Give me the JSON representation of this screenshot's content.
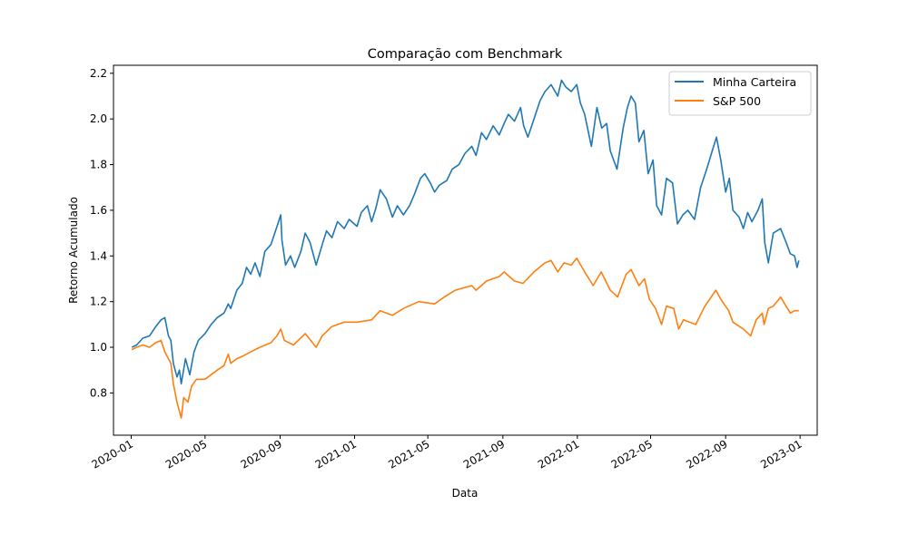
{
  "chart_data": {
    "type": "line",
    "title": "Comparação com Benchmark",
    "xlabel": "Data",
    "ylabel": "Retorno Acumulado",
    "xlim": [
      "2019-12-03",
      "2023-01-29"
    ],
    "ylim": [
      0.615,
      2.235
    ],
    "x_ticks": [
      "2020-01-01",
      "2020-05-01",
      "2020-09-01",
      "2021-01-01",
      "2021-05-01",
      "2021-09-01",
      "2022-01-01",
      "2022-05-01",
      "2022-09-01",
      "2023-01-01"
    ],
    "x_tick_labels": [
      "2020-01",
      "2020-05",
      "2020-09",
      "2021-01",
      "2021-05",
      "2021-09",
      "2022-01",
      "2022-05",
      "2022-09",
      "2023-01"
    ],
    "y_ticks": [
      0.8,
      1.0,
      1.2,
      1.4,
      1.6,
      1.8,
      2.0,
      2.2
    ],
    "y_tick_labels": [
      "0.8",
      "1.0",
      "1.2",
      "1.4",
      "1.6",
      "1.8",
      "2.0",
      "2.2"
    ],
    "grid": false,
    "legend_position": "top-right",
    "series": [
      {
        "name": "Minha Carteira",
        "color": "#1f77b4",
        "points": [
          [
            "2020-01-02",
            1.0
          ],
          [
            "2020-01-10",
            1.01
          ],
          [
            "2020-01-20",
            1.04
          ],
          [
            "2020-01-31",
            1.05
          ],
          [
            "2020-02-10",
            1.09
          ],
          [
            "2020-02-19",
            1.12
          ],
          [
            "2020-02-25",
            1.13
          ],
          [
            "2020-03-02",
            1.05
          ],
          [
            "2020-03-06",
            1.03
          ],
          [
            "2020-03-10",
            0.93
          ],
          [
            "2020-03-16",
            0.87
          ],
          [
            "2020-03-20",
            0.9
          ],
          [
            "2020-03-23",
            0.84
          ],
          [
            "2020-03-30",
            0.95
          ],
          [
            "2020-04-06",
            0.88
          ],
          [
            "2020-04-13",
            0.98
          ],
          [
            "2020-04-20",
            1.03
          ],
          [
            "2020-05-01",
            1.06
          ],
          [
            "2020-05-11",
            1.1
          ],
          [
            "2020-05-21",
            1.13
          ],
          [
            "2020-06-01",
            1.15
          ],
          [
            "2020-06-08",
            1.19
          ],
          [
            "2020-06-12",
            1.17
          ],
          [
            "2020-06-22",
            1.25
          ],
          [
            "2020-07-01",
            1.28
          ],
          [
            "2020-07-08",
            1.35
          ],
          [
            "2020-07-15",
            1.32
          ],
          [
            "2020-07-22",
            1.37
          ],
          [
            "2020-07-30",
            1.31
          ],
          [
            "2020-08-07",
            1.42
          ],
          [
            "2020-08-17",
            1.45
          ],
          [
            "2020-08-27",
            1.53
          ],
          [
            "2020-09-02",
            1.58
          ],
          [
            "2020-09-04",
            1.47
          ],
          [
            "2020-09-10",
            1.36
          ],
          [
            "2020-09-18",
            1.4
          ],
          [
            "2020-09-25",
            1.35
          ],
          [
            "2020-10-05",
            1.42
          ],
          [
            "2020-10-12",
            1.5
          ],
          [
            "2020-10-20",
            1.46
          ],
          [
            "2020-10-30",
            1.36
          ],
          [
            "2020-11-09",
            1.45
          ],
          [
            "2020-11-16",
            1.51
          ],
          [
            "2020-11-25",
            1.48
          ],
          [
            "2020-12-04",
            1.55
          ],
          [
            "2020-12-15",
            1.52
          ],
          [
            "2020-12-23",
            1.56
          ],
          [
            "2021-01-05",
            1.53
          ],
          [
            "2021-01-12",
            1.59
          ],
          [
            "2021-01-22",
            1.62
          ],
          [
            "2021-01-29",
            1.55
          ],
          [
            "2021-02-05",
            1.61
          ],
          [
            "2021-02-12",
            1.69
          ],
          [
            "2021-02-22",
            1.65
          ],
          [
            "2021-03-04",
            1.57
          ],
          [
            "2021-03-12",
            1.62
          ],
          [
            "2021-03-22",
            1.58
          ],
          [
            "2021-04-01",
            1.62
          ],
          [
            "2021-04-09",
            1.67
          ],
          [
            "2021-04-19",
            1.74
          ],
          [
            "2021-04-26",
            1.76
          ],
          [
            "2021-05-05",
            1.72
          ],
          [
            "2021-05-12",
            1.68
          ],
          [
            "2021-05-20",
            1.71
          ],
          [
            "2021-06-01",
            1.73
          ],
          [
            "2021-06-10",
            1.78
          ],
          [
            "2021-06-21",
            1.8
          ],
          [
            "2021-07-01",
            1.85
          ],
          [
            "2021-07-12",
            1.88
          ],
          [
            "2021-07-19",
            1.84
          ],
          [
            "2021-07-28",
            1.94
          ],
          [
            "2021-08-05",
            1.91
          ],
          [
            "2021-08-16",
            1.97
          ],
          [
            "2021-08-26",
            1.93
          ],
          [
            "2021-09-03",
            1.98
          ],
          [
            "2021-09-10",
            2.02
          ],
          [
            "2021-09-20",
            1.99
          ],
          [
            "2021-09-30",
            2.05
          ],
          [
            "2021-10-05",
            1.97
          ],
          [
            "2021-10-12",
            1.92
          ],
          [
            "2021-10-22",
            2.0
          ],
          [
            "2021-11-01",
            2.08
          ],
          [
            "2021-11-09",
            2.12
          ],
          [
            "2021-11-19",
            2.15
          ],
          [
            "2021-11-30",
            2.1
          ],
          [
            "2021-12-06",
            2.17
          ],
          [
            "2021-12-13",
            2.14
          ],
          [
            "2021-12-22",
            2.12
          ],
          [
            "2021-12-31",
            2.15
          ],
          [
            "2022-01-06",
            2.07
          ],
          [
            "2022-01-13",
            2.02
          ],
          [
            "2022-01-24",
            1.88
          ],
          [
            "2022-02-02",
            2.05
          ],
          [
            "2022-02-10",
            1.96
          ],
          [
            "2022-02-18",
            1.98
          ],
          [
            "2022-02-24",
            1.86
          ],
          [
            "2022-03-07",
            1.78
          ],
          [
            "2022-03-17",
            1.96
          ],
          [
            "2022-03-24",
            2.05
          ],
          [
            "2022-03-30",
            2.1
          ],
          [
            "2022-04-06",
            2.07
          ],
          [
            "2022-04-12",
            1.9
          ],
          [
            "2022-04-20",
            1.95
          ],
          [
            "2022-04-27",
            1.76
          ],
          [
            "2022-05-05",
            1.82
          ],
          [
            "2022-05-11",
            1.62
          ],
          [
            "2022-05-19",
            1.58
          ],
          [
            "2022-05-27",
            1.74
          ],
          [
            "2022-06-06",
            1.72
          ],
          [
            "2022-06-14",
            1.54
          ],
          [
            "2022-06-23",
            1.58
          ],
          [
            "2022-07-01",
            1.6
          ],
          [
            "2022-07-12",
            1.56
          ],
          [
            "2022-07-22",
            1.7
          ],
          [
            "2022-08-01",
            1.78
          ],
          [
            "2022-08-10",
            1.86
          ],
          [
            "2022-08-17",
            1.92
          ],
          [
            "2022-08-24",
            1.82
          ],
          [
            "2022-09-01",
            1.68
          ],
          [
            "2022-09-07",
            1.74
          ],
          [
            "2022-09-13",
            1.6
          ],
          [
            "2022-09-23",
            1.57
          ],
          [
            "2022-09-30",
            1.52
          ],
          [
            "2022-10-07",
            1.59
          ],
          [
            "2022-10-14",
            1.55
          ],
          [
            "2022-10-24",
            1.6
          ],
          [
            "2022-10-31",
            1.65
          ],
          [
            "2022-11-04",
            1.46
          ],
          [
            "2022-11-10",
            1.37
          ],
          [
            "2022-11-18",
            1.5
          ],
          [
            "2022-11-30",
            1.52
          ],
          [
            "2022-12-09",
            1.46
          ],
          [
            "2022-12-16",
            1.41
          ],
          [
            "2022-12-23",
            1.4
          ],
          [
            "2022-12-27",
            1.35
          ],
          [
            "2022-12-30",
            1.38
          ]
        ]
      },
      {
        "name": "S&P 500",
        "color": "#ff7f0e",
        "points": [
          [
            "2020-01-02",
            0.99
          ],
          [
            "2020-01-10",
            1.0
          ],
          [
            "2020-01-20",
            1.01
          ],
          [
            "2020-01-31",
            1.0
          ],
          [
            "2020-02-10",
            1.02
          ],
          [
            "2020-02-19",
            1.03
          ],
          [
            "2020-02-25",
            0.98
          ],
          [
            "2020-03-02",
            0.95
          ],
          [
            "2020-03-06",
            0.93
          ],
          [
            "2020-03-10",
            0.84
          ],
          [
            "2020-03-16",
            0.76
          ],
          [
            "2020-03-20",
            0.72
          ],
          [
            "2020-03-23",
            0.69
          ],
          [
            "2020-03-27",
            0.78
          ],
          [
            "2020-04-03",
            0.76
          ],
          [
            "2020-04-09",
            0.83
          ],
          [
            "2020-04-17",
            0.86
          ],
          [
            "2020-05-01",
            0.86
          ],
          [
            "2020-05-11",
            0.88
          ],
          [
            "2020-05-21",
            0.9
          ],
          [
            "2020-06-01",
            0.92
          ],
          [
            "2020-06-08",
            0.97
          ],
          [
            "2020-06-12",
            0.93
          ],
          [
            "2020-06-22",
            0.95
          ],
          [
            "2020-07-01",
            0.96
          ],
          [
            "2020-07-15",
            0.98
          ],
          [
            "2020-07-30",
            1.0
          ],
          [
            "2020-08-17",
            1.02
          ],
          [
            "2020-08-27",
            1.05
          ],
          [
            "2020-09-02",
            1.08
          ],
          [
            "2020-09-08",
            1.03
          ],
          [
            "2020-09-23",
            1.01
          ],
          [
            "2020-10-12",
            1.06
          ],
          [
            "2020-10-30",
            1.0
          ],
          [
            "2020-11-09",
            1.05
          ],
          [
            "2020-11-24",
            1.09
          ],
          [
            "2020-12-15",
            1.11
          ],
          [
            "2021-01-05",
            1.11
          ],
          [
            "2021-01-29",
            1.12
          ],
          [
            "2021-02-12",
            1.16
          ],
          [
            "2021-03-04",
            1.14
          ],
          [
            "2021-03-22",
            1.17
          ],
          [
            "2021-04-16",
            1.2
          ],
          [
            "2021-05-12",
            1.19
          ],
          [
            "2021-05-28",
            1.22
          ],
          [
            "2021-06-15",
            1.25
          ],
          [
            "2021-07-12",
            1.27
          ],
          [
            "2021-07-19",
            1.25
          ],
          [
            "2021-08-05",
            1.29
          ],
          [
            "2021-08-26",
            1.31
          ],
          [
            "2021-09-03",
            1.33
          ],
          [
            "2021-09-20",
            1.29
          ],
          [
            "2021-10-04",
            1.28
          ],
          [
            "2021-10-22",
            1.33
          ],
          [
            "2021-11-09",
            1.37
          ],
          [
            "2021-11-19",
            1.38
          ],
          [
            "2021-11-30",
            1.33
          ],
          [
            "2021-12-10",
            1.37
          ],
          [
            "2021-12-22",
            1.36
          ],
          [
            "2021-12-31",
            1.39
          ],
          [
            "2022-01-13",
            1.33
          ],
          [
            "2022-01-27",
            1.27
          ],
          [
            "2022-02-09",
            1.33
          ],
          [
            "2022-02-24",
            1.25
          ],
          [
            "2022-03-08",
            1.22
          ],
          [
            "2022-03-22",
            1.32
          ],
          [
            "2022-03-30",
            1.34
          ],
          [
            "2022-04-12",
            1.27
          ],
          [
            "2022-04-21",
            1.3
          ],
          [
            "2022-04-29",
            1.21
          ],
          [
            "2022-05-09",
            1.17
          ],
          [
            "2022-05-19",
            1.1
          ],
          [
            "2022-05-27",
            1.18
          ],
          [
            "2022-06-08",
            1.17
          ],
          [
            "2022-06-16",
            1.08
          ],
          [
            "2022-06-24",
            1.12
          ],
          [
            "2022-07-14",
            1.1
          ],
          [
            "2022-07-29",
            1.18
          ],
          [
            "2022-08-16",
            1.25
          ],
          [
            "2022-08-24",
            1.21
          ],
          [
            "2022-09-06",
            1.16
          ],
          [
            "2022-09-13",
            1.11
          ],
          [
            "2022-09-30",
            1.08
          ],
          [
            "2022-10-12",
            1.05
          ],
          [
            "2022-10-21",
            1.12
          ],
          [
            "2022-10-31",
            1.15
          ],
          [
            "2022-11-03",
            1.1
          ],
          [
            "2022-11-10",
            1.17
          ],
          [
            "2022-11-18",
            1.18
          ],
          [
            "2022-11-30",
            1.22
          ],
          [
            "2022-12-09",
            1.18
          ],
          [
            "2022-12-16",
            1.15
          ],
          [
            "2022-12-23",
            1.16
          ],
          [
            "2022-12-30",
            1.16
          ]
        ]
      }
    ]
  }
}
